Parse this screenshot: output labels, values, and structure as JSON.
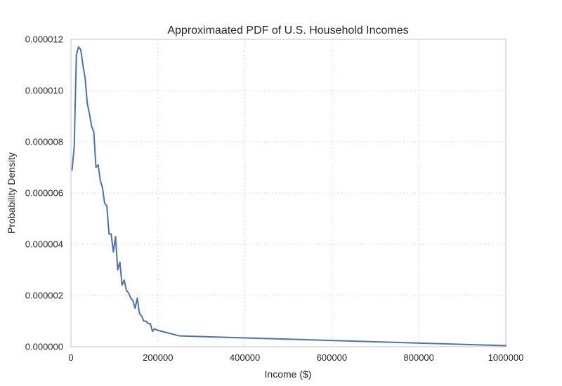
{
  "chart_data": {
    "type": "line",
    "title": "Approximaated PDF of U.S. Household Incomes",
    "xlabel": "Income ($)",
    "ylabel": "Probability Density",
    "xlim": [
      0,
      1000000
    ],
    "ylim": [
      0,
      1.2e-05
    ],
    "x_ticks": [
      0,
      200000,
      400000,
      600000,
      800000,
      1000000
    ],
    "x_tick_labels": [
      "0",
      "200000",
      "400000",
      "600000",
      "800000",
      "1000000"
    ],
    "y_ticks": [
      0,
      2e-06,
      4e-06,
      6e-06,
      8e-06,
      1e-05,
      1.2e-05
    ],
    "y_tick_labels": [
      "0.000000",
      "0.000002",
      "0.000004",
      "0.000006",
      "0.000008",
      "0.000010",
      "0.000012"
    ],
    "grid": true,
    "legend": "none",
    "colors": {
      "series": "#4c72b0",
      "frame": "#cccccc",
      "grid": "#cccccc"
    },
    "series": [
      {
        "x": [
          2500,
          7500,
          12500,
          17500,
          22500,
          27500,
          32500,
          37500,
          42500,
          47500,
          52500,
          57500,
          62500,
          67500,
          72500,
          77500,
          82500,
          87500,
          92500,
          97500,
          102500,
          107500,
          112500,
          117500,
          122500,
          127500,
          132500,
          137500,
          142500,
          147500,
          152500,
          157500,
          162500,
          167500,
          172500,
          177500,
          182500,
          187500,
          192500,
          197500,
          250000,
          1000000
        ],
        "y": [
          6.9e-06,
          7.8e-06,
          1.14e-05,
          1.17e-05,
          1.16e-05,
          1.1e-05,
          1.05e-05,
          9.5e-06,
          9.1e-06,
          8.6e-06,
          8.4e-06,
          7e-06,
          7.1e-06,
          6.5e-06,
          6.2e-06,
          5.6e-06,
          5.5e-06,
          4.4e-06,
          4.4e-06,
          3.7e-06,
          4.3e-06,
          3e-06,
          3.3e-06,
          2.4e-06,
          2.6e-06,
          2.2e-06,
          2.1e-06,
          1.9e-06,
          1.8e-06,
          1.5e-06,
          1.9e-06,
          1.3e-06,
          1.2e-06,
          1e-06,
          1e-06,
          9e-07,
          9e-07,
          6e-07,
          7e-07,
          6.5e-07,
          4.2e-07,
          4e-08
        ]
      }
    ]
  }
}
